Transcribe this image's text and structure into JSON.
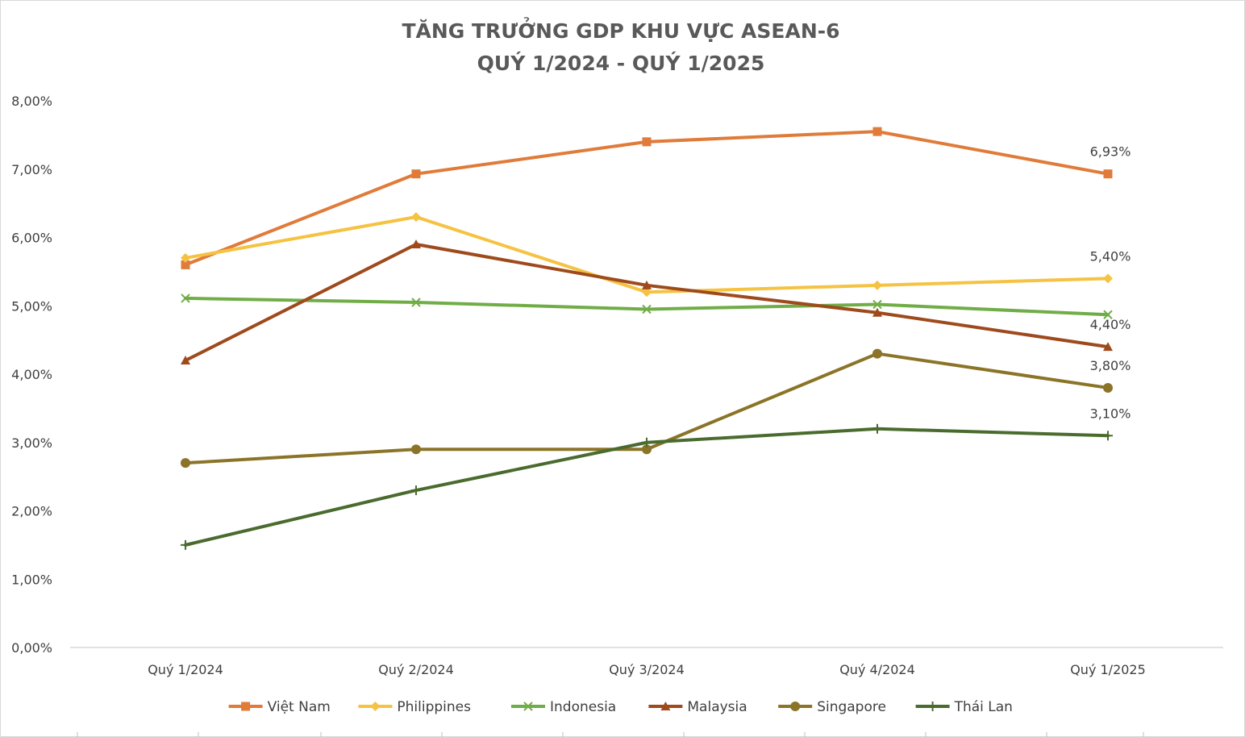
{
  "chart_data": {
    "type": "line",
    "title": "TĂNG TRƯỞNG GDP KHU VỰC ASEAN-6",
    "subtitle": "QUÝ 1/2024 - QUÝ 1/2025",
    "categories": [
      "Quý 1/2024",
      "Quý 2/2024",
      "Quý 3/2024",
      "Quý 4/2024",
      "Quý 1/2025"
    ],
    "y_ticks": [
      "0,00%",
      "1,00%",
      "2,00%",
      "3,00%",
      "4,00%",
      "5,00%",
      "6,00%",
      "7,00%",
      "8,00%"
    ],
    "ylim": [
      0,
      8
    ],
    "grid": false,
    "legend_position": "bottom",
    "series": [
      {
        "name": "Việt Nam",
        "values": [
          5.6,
          6.93,
          7.4,
          7.55,
          6.93
        ],
        "color": "#E07B39",
        "marker": "square",
        "last_label": "6,93%"
      },
      {
        "name": "Philippines",
        "values": [
          5.7,
          6.3,
          5.2,
          5.3,
          5.4
        ],
        "color": "#F5C242",
        "marker": "diamond",
        "last_label": "5,40%"
      },
      {
        "name": "Indonesia",
        "values": [
          5.11,
          5.05,
          4.95,
          5.02,
          4.87
        ],
        "color": "#70AD47",
        "marker": "x",
        "last_label": ""
      },
      {
        "name": "Malaysia",
        "values": [
          4.2,
          5.9,
          5.3,
          4.9,
          4.4
        ],
        "color": "#9E4A1C",
        "marker": "triangle",
        "last_label": "4,40%"
      },
      {
        "name": "Singapore",
        "values": [
          2.7,
          2.9,
          2.9,
          4.3,
          3.8
        ],
        "color": "#8B7428",
        "marker": "circle",
        "last_label": "3,80%"
      },
      {
        "name": "Thái Lan",
        "values": [
          1.5,
          2.3,
          3.0,
          3.2,
          3.1
        ],
        "color": "#4A6B2E",
        "marker": "plus",
        "last_label": "3,10%"
      }
    ]
  }
}
